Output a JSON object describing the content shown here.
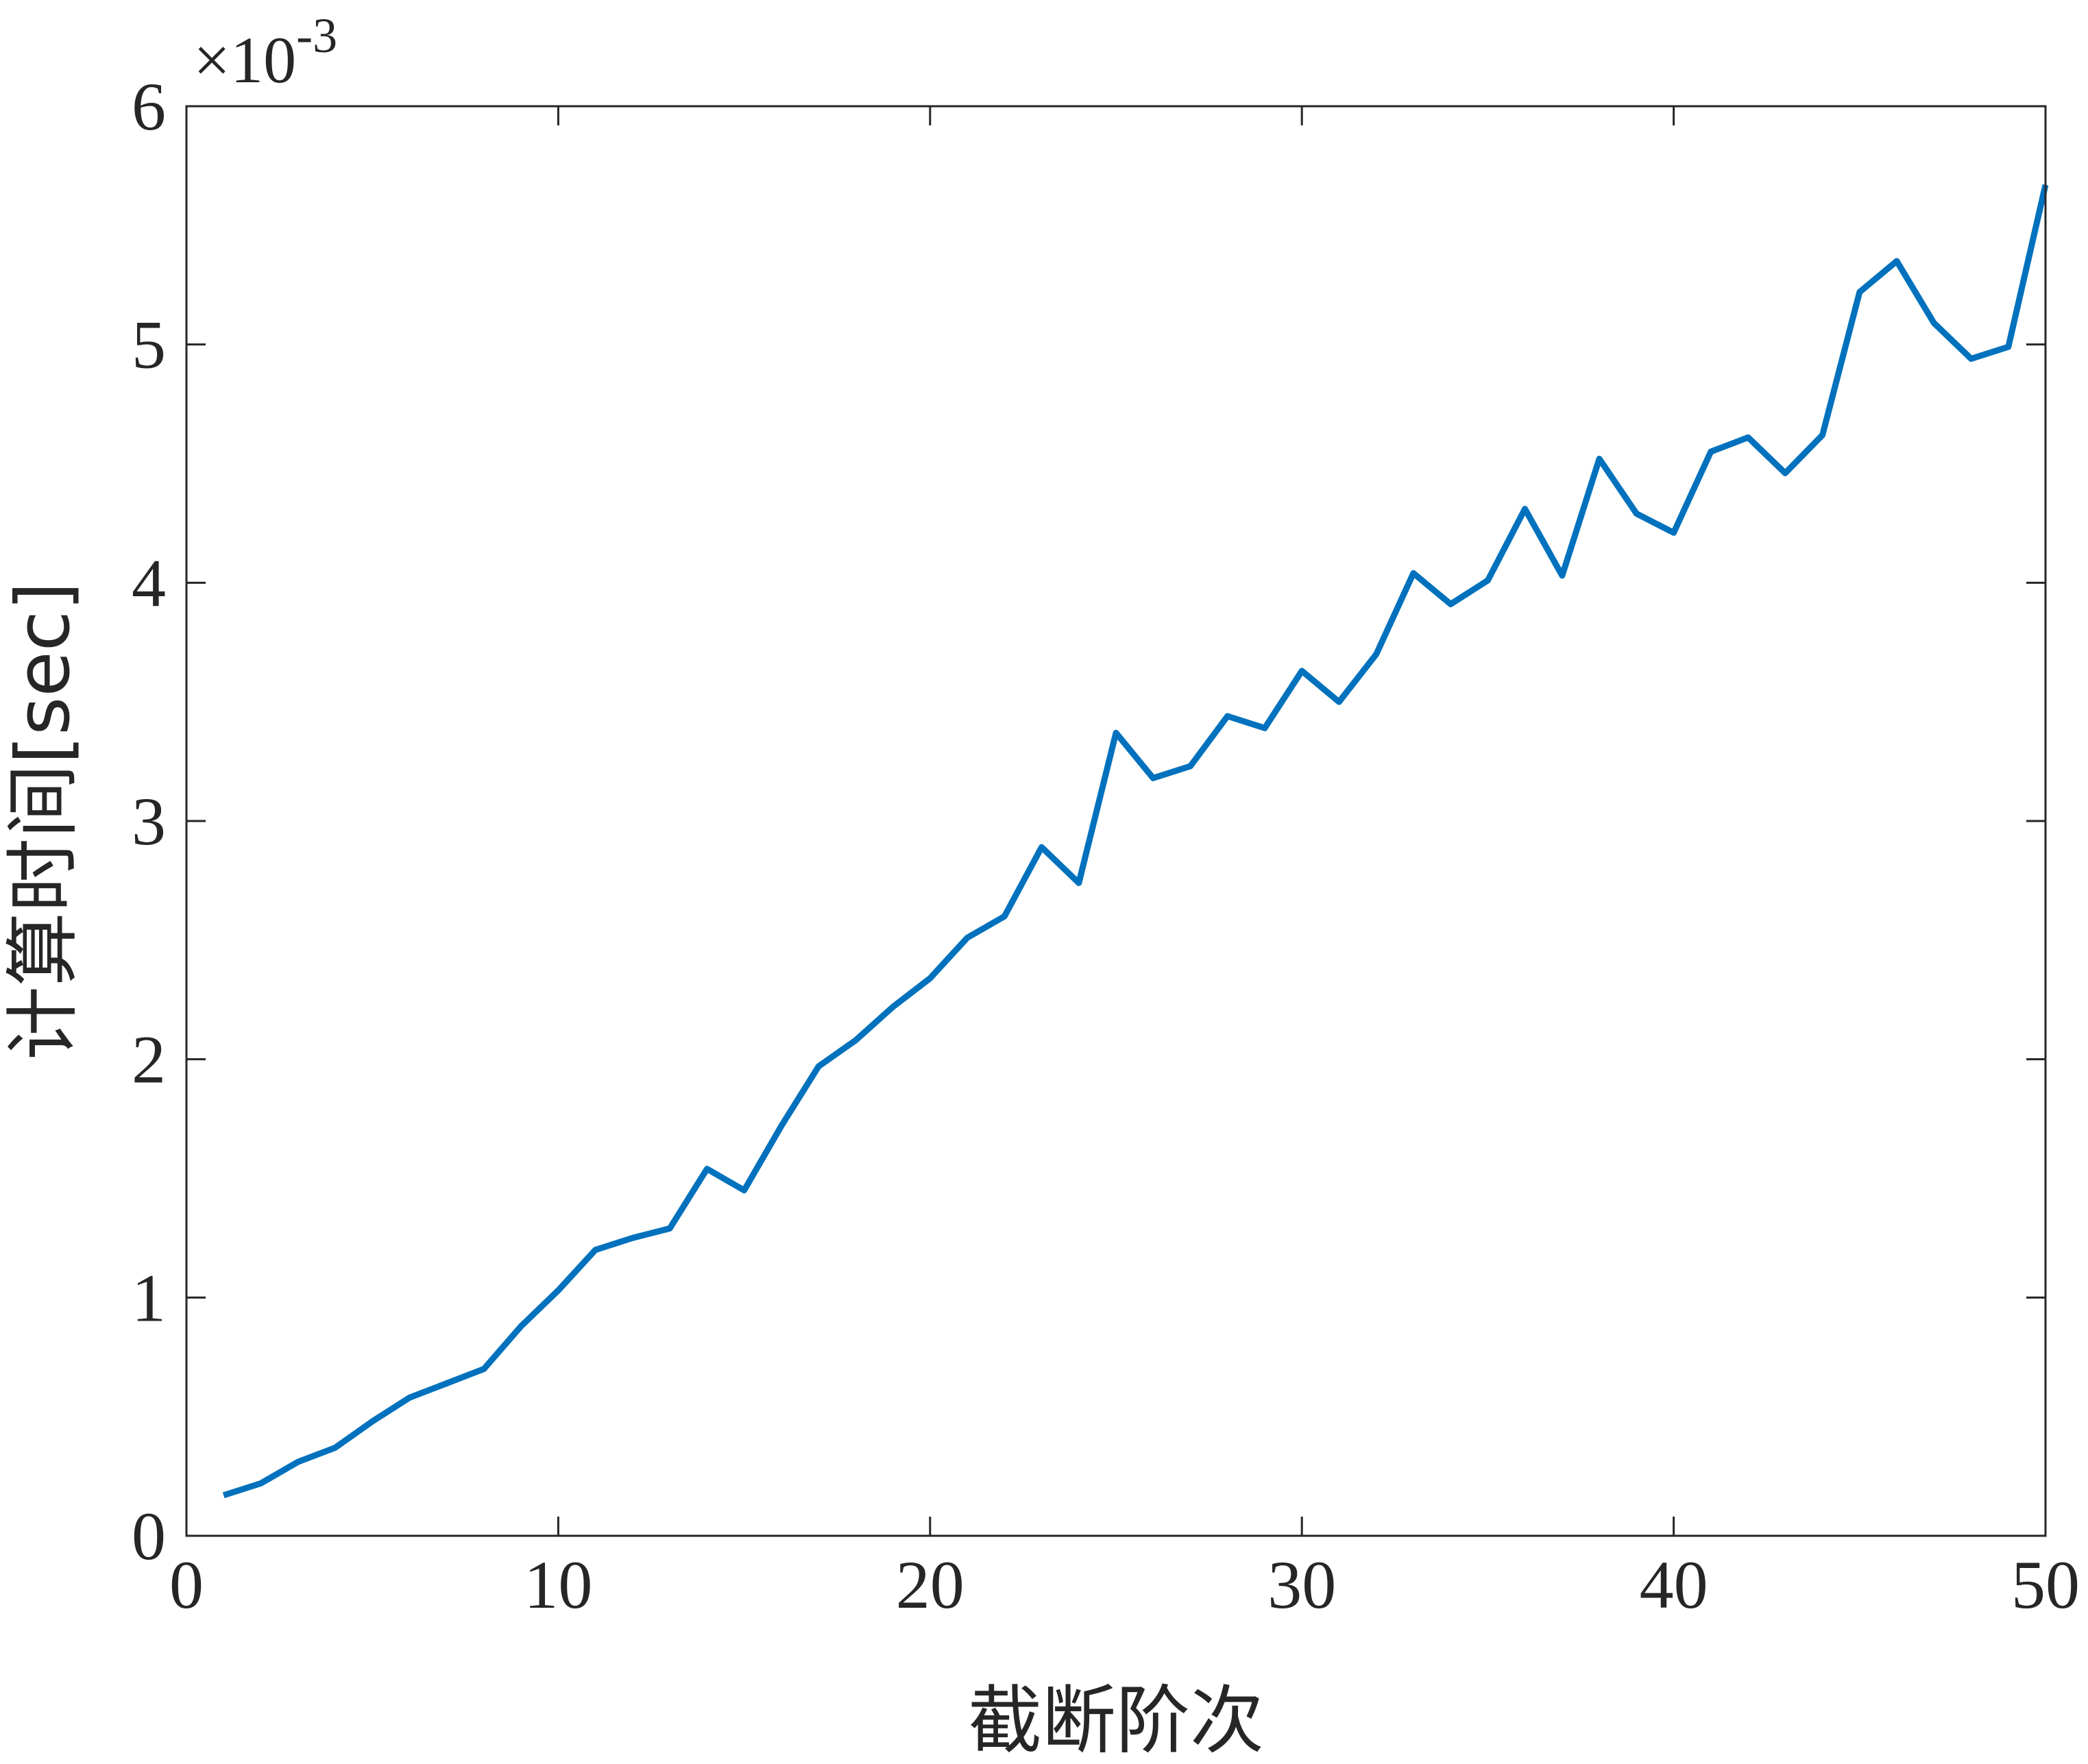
{
  "chart_data": {
    "type": "line",
    "xlabel": "截断阶次",
    "ylabel": "计算时间[sec]",
    "xlim": [
      0,
      50
    ],
    "ylim": [
      0,
      6
    ],
    "xticks": [
      "0",
      "10",
      "20",
      "30",
      "40",
      "50"
    ],
    "yticks": [
      "0",
      "1",
      "2",
      "3",
      "4",
      "5",
      "6"
    ],
    "y_exponent_prefix": "×10",
    "y_exponent_power": "-3",
    "grid": false,
    "legend": "none",
    "series": [
      {
        "color": "#0072bd",
        "x": [
          1,
          2,
          3,
          4,
          5,
          6,
          7,
          8,
          9,
          10,
          11,
          12,
          13,
          14,
          15,
          16,
          17,
          18,
          19,
          20,
          21,
          22,
          23,
          24,
          25,
          26,
          27,
          28,
          29,
          30,
          31,
          32,
          33,
          34,
          35,
          36,
          37,
          38,
          39,
          40,
          41,
          42,
          43,
          44,
          45,
          46,
          47,
          48,
          49,
          50
        ],
        "y": [
          0.17,
          0.22,
          0.31,
          0.37,
          0.48,
          0.58,
          0.64,
          0.7,
          0.88,
          1.03,
          1.2,
          1.25,
          1.29,
          1.54,
          1.45,
          1.72,
          1.97,
          2.08,
          2.22,
          2.34,
          2.51,
          2.6,
          2.89,
          2.74,
          3.37,
          3.18,
          3.23,
          3.44,
          3.39,
          3.63,
          3.5,
          3.7,
          4.04,
          3.91,
          4.01,
          4.31,
          4.03,
          4.52,
          4.29,
          4.21,
          4.55,
          4.61,
          4.46,
          4.62,
          5.22,
          5.35,
          5.09,
          4.94,
          4.99,
          5.67
        ]
      }
    ]
  }
}
